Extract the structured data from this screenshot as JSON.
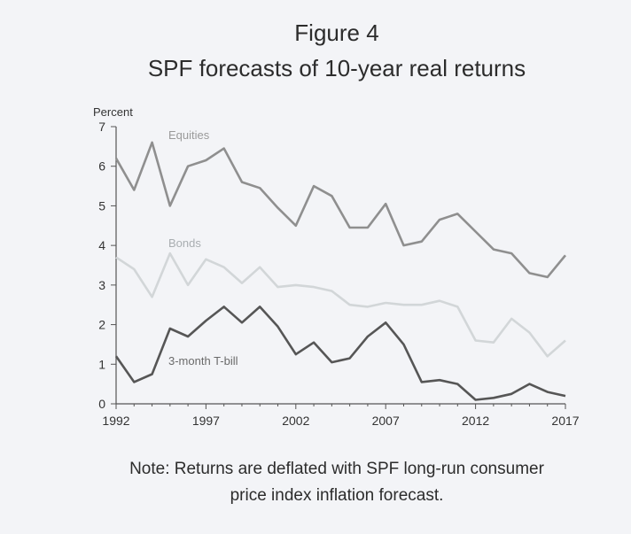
{
  "figure": {
    "label": "Figure 4",
    "title": "SPF forecasts of 10-year real returns"
  },
  "note": {
    "line1": "Note: Returns are deflated with SPF long-run consumer",
    "line2": "price index inflation forecast."
  },
  "chart_data": {
    "type": "line",
    "title": "SPF forecasts of 10-year real returns",
    "xlabel": "",
    "ylabel": "Percent",
    "xlim": [
      1992,
      2017
    ],
    "ylim": [
      0,
      7
    ],
    "xticks": [
      1992,
      1997,
      2002,
      2007,
      2012,
      2017
    ],
    "yticks": [
      0,
      1,
      2,
      3,
      4,
      5,
      6,
      7
    ],
    "grid": false,
    "legend": "inline labels",
    "x": [
      1992,
      1993,
      1994,
      1995,
      1996,
      1997,
      1998,
      1999,
      2000,
      2001,
      2002,
      2003,
      2004,
      2005,
      2006,
      2007,
      2008,
      2009,
      2010,
      2011,
      2012,
      2013,
      2014,
      2015,
      2016,
      2017
    ],
    "series": [
      {
        "name": "Equities",
        "color": "#8f8f8f",
        "values": [
          6.2,
          5.4,
          6.6,
          5.0,
          6.0,
          6.15,
          6.45,
          5.6,
          5.45,
          4.95,
          4.5,
          5.5,
          5.25,
          4.45,
          4.45,
          5.05,
          4.0,
          4.1,
          4.65,
          4.8,
          4.35,
          3.9,
          3.8,
          3.3,
          3.2,
          3.75
        ]
      },
      {
        "name": "Bonds",
        "color": "#d2d6d8",
        "values": [
          3.7,
          3.4,
          2.7,
          3.8,
          3.0,
          3.65,
          3.45,
          3.05,
          3.45,
          2.95,
          3.0,
          2.95,
          2.85,
          2.5,
          2.45,
          2.55,
          2.5,
          2.5,
          2.6,
          2.45,
          1.6,
          1.55,
          2.15,
          1.8,
          1.2,
          1.6
        ]
      },
      {
        "name": "3-month T-bill",
        "color": "#565656",
        "values": [
          1.2,
          0.55,
          0.75,
          1.9,
          1.7,
          2.1,
          2.45,
          2.05,
          2.45,
          1.95,
          1.25,
          1.55,
          1.05,
          1.15,
          1.7,
          2.05,
          1.5,
          0.55,
          0.6,
          0.5,
          0.1,
          0.15,
          0.25,
          0.5,
          0.3,
          0.2
        ]
      }
    ]
  }
}
